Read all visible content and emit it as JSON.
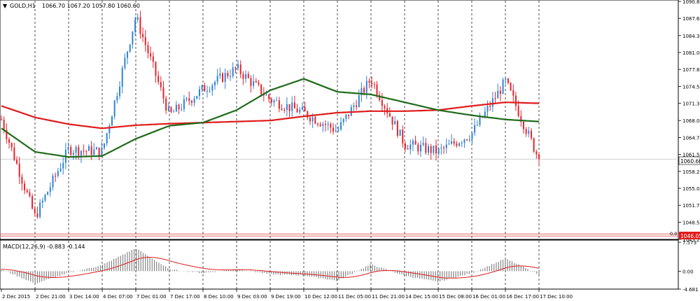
{
  "title_bar": {
    "arrow": "▼",
    "symbol": "GOLD,H1",
    "ohlc": "1066.70 1067.20 1057.80 1060.60"
  },
  "colors": {
    "bull": "#2f82d6",
    "bear": "#e5222b",
    "ma_fast": "#1f6b1a",
    "ma_slow": "#e01b1b",
    "macd_hist": "#7c7c7c",
    "macd_signal": "#e01b1b",
    "hline": "#e05050",
    "current_label_bg": "#ffffff",
    "level_label_bg": "#e01b1b"
  },
  "price_axis": {
    "ticks": [
      "1090.85",
      "1087.60",
      "1084.30",
      "1081.05",
      "1077.80",
      "1074.55",
      "1071.30",
      "1068.00",
      "1064.75",
      "1061.50",
      "1058.25",
      "1055.00",
      "1051.75",
      "1048.50",
      "1045.20"
    ],
    "current_price": "1060.60",
    "level_line": "1046.05",
    "level_zero_marker": "0.0"
  },
  "macd": {
    "label": "MACD(12,26,9) -0.883 -0.144",
    "ticks": [
      "7.573",
      "0.00",
      "-4.681"
    ]
  },
  "time_axis": {
    "labels": [
      "2 Dec 2015",
      "2 Dec 21:00",
      "3 Dec 14:00",
      "4 Dec 07:00",
      "7 Dec 01:00",
      "7 Dec 17:00",
      "8 Dec 10:00",
      "9 Dec 03:00",
      "9 Dec 19:00",
      "10 Dec 12:00",
      "11 Dec 05:00",
      "11 Dec 21:00",
      "14 Dec 15:00",
      "15 Dec 08:00",
      "16 Dec 01:00",
      "16 Dec 17:00",
      "17 Dec 10:00"
    ]
  },
  "chart_data": {
    "type": "candlestick",
    "title": "GOLD,H1",
    "ylim": [
      1045.2,
      1090.85
    ],
    "key_points": {
      "x": [
        "2 Dec 2015",
        "2 Dec 21:00",
        "3 Dec 14:00",
        "4 Dec 07:00",
        "7 Dec 01:00",
        "7 Dec 17:00",
        "8 Dec 10:00",
        "9 Dec 03:00",
        "9 Dec 19:00",
        "10 Dec 12:00",
        "11 Dec 05:00",
        "11 Dec 21:00",
        "14 Dec 15:00",
        "15 Dec 08:00",
        "16 Dec 01:00",
        "16 Dec 17:00",
        "17 Dec 10:00"
      ],
      "close": [
        1068.2,
        1049.5,
        1062.5,
        1062.0,
        1088.0,
        1069.0,
        1074.0,
        1078.0,
        1072.0,
        1069.5,
        1066.0,
        1076.0,
        1063.5,
        1062.0,
        1065.5,
        1075.5,
        1060.6
      ]
    },
    "series": [
      {
        "name": "MA fast",
        "values": [
          1066.5,
          1062.0,
          1061.0,
          1061.2,
          1064.5,
          1067.0,
          1067.6,
          1070.0,
          1073.8,
          1076.0,
          1073.5,
          1073.0,
          1071.5,
          1070.0,
          1069.0,
          1068.2,
          1067.8
        ]
      },
      {
        "name": "MA slow",
        "values": [
          1070.8,
          1068.6,
          1067.3,
          1066.5,
          1067.1,
          1067.4,
          1067.6,
          1067.8,
          1068.0,
          1068.8,
          1069.5,
          1069.8,
          1069.8,
          1070.0,
          1070.8,
          1071.5,
          1071.3
        ]
      },
      {
        "name": "MACD",
        "values": [
          0.5,
          -3.2,
          -0.5,
          1.6,
          6.0,
          0.5,
          -0.5,
          0.6,
          -0.8,
          -1.1,
          -2.5,
          1.8,
          -1.2,
          -2.8,
          -0.5,
          3.3,
          -0.883
        ]
      }
    ],
    "macd_ylim": [
      -4.681,
      7.573
    ]
  }
}
